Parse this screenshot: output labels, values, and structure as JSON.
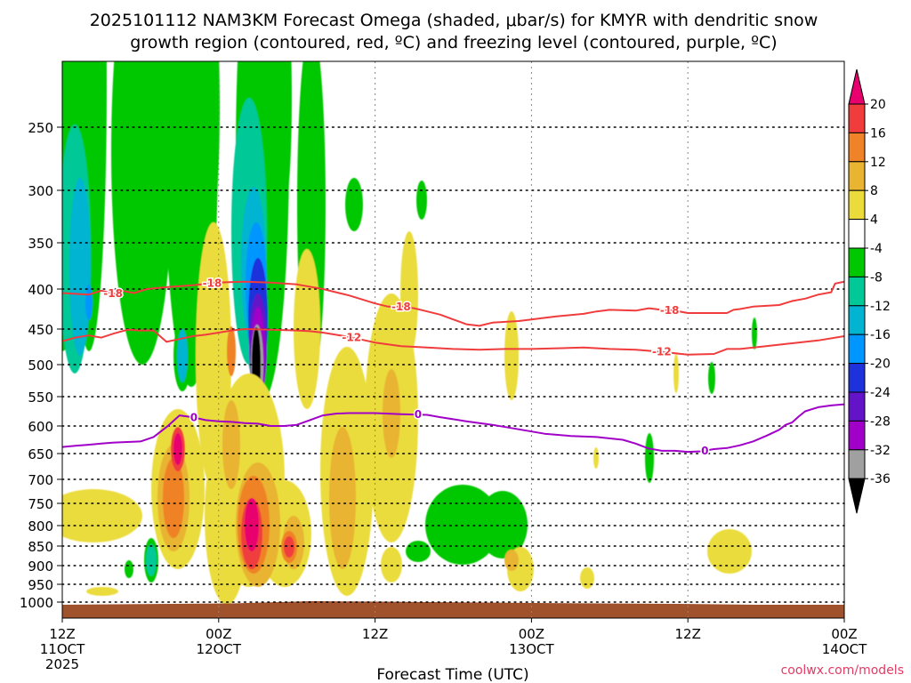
{
  "chart_data": {
    "type": "heatmap",
    "title_line1": "2025101112 NAM3KM Forecast Omega (shaded, μbar/s) for KMYR with dendritic snow",
    "title_line2": "growth region (contoured, red, ºC) and freezing level (contoured, purple, ºC)",
    "xlabel": "Forecast Time (UTC)",
    "credit": "coolwx.com/models",
    "x_ticks": [
      {
        "hour": 0,
        "line1": "12Z",
        "line2": "11OCT",
        "line3": "2025"
      },
      {
        "hour": 12,
        "line1": "00Z",
        "line2": "12OCT",
        "line3": ""
      },
      {
        "hour": 24,
        "line1": "12Z",
        "line2": "",
        "line3": ""
      },
      {
        "hour": 36,
        "line1": "00Z",
        "line2": "13OCT",
        "line3": ""
      },
      {
        "hour": 48,
        "line1": "12Z",
        "line2": "",
        "line3": ""
      },
      {
        "hour": 60,
        "line1": "00Z",
        "line2": "14OCT",
        "line3": ""
      }
    ],
    "x_range_hours": [
      0,
      60
    ],
    "y_ticks": [
      250,
      300,
      350,
      400,
      450,
      500,
      550,
      600,
      650,
      700,
      750,
      800,
      850,
      900,
      950,
      1000
    ],
    "y_range_hpa": [
      200,
      1025
    ],
    "colorbar": {
      "labels": [
        "20",
        "16",
        "12",
        "8",
        "4",
        "-4",
        "-8",
        "-12",
        "-16",
        "-20",
        "-24",
        "-28",
        "-32",
        "-36"
      ],
      "colors": [
        "#e8006e",
        "#f03c3c",
        "#f08228",
        "#e8b432",
        "#ebdc3c",
        "#ffffff",
        "#00c800",
        "#00c896",
        "#00b4d2",
        "#0096ff",
        "#1e32dc",
        "#6414c8",
        "#a000c8",
        "#a0a0a0",
        "#000000"
      ]
    },
    "contours": [
      {
        "label": "-18",
        "color": "#f03c3c",
        "label_hours": [
          3.9,
          11.5,
          26.0,
          46.6
        ],
        "points": [
          [
            0,
            405
          ],
          [
            1,
            406
          ],
          [
            2,
            407
          ],
          [
            3,
            402
          ],
          [
            4,
            406
          ],
          [
            4.5,
            402
          ],
          [
            5.5,
            405
          ],
          [
            6.5,
            400
          ],
          [
            8,
            398
          ],
          [
            10,
            396
          ],
          [
            12,
            393
          ],
          [
            14,
            392
          ],
          [
            16,
            393
          ],
          [
            18,
            395
          ],
          [
            20,
            400
          ],
          [
            22,
            408
          ],
          [
            24,
            418
          ],
          [
            25,
            422
          ],
          [
            26,
            422
          ],
          [
            27,
            424
          ],
          [
            28,
            428
          ],
          [
            29,
            432
          ],
          [
            30,
            438
          ],
          [
            31,
            444
          ],
          [
            32,
            446
          ],
          [
            33,
            442
          ],
          [
            34,
            441
          ],
          [
            35,
            440
          ],
          [
            36,
            438
          ],
          [
            37,
            436
          ],
          [
            38,
            434
          ],
          [
            40,
            431
          ],
          [
            41,
            428
          ],
          [
            42,
            426
          ],
          [
            44,
            427
          ],
          [
            45,
            424
          ],
          [
            46,
            426
          ],
          [
            47,
            427
          ],
          [
            48,
            430
          ],
          [
            49,
            430
          ],
          [
            50,
            430
          ],
          [
            51,
            430
          ],
          [
            51.5,
            426
          ],
          [
            52,
            425
          ],
          [
            53,
            422
          ],
          [
            54,
            421
          ],
          [
            55,
            420
          ],
          [
            56,
            415
          ],
          [
            57,
            412
          ],
          [
            58,
            407
          ],
          [
            59,
            404
          ],
          [
            59.3,
            394
          ],
          [
            60,
            392
          ]
        ]
      },
      {
        "label": "-12",
        "color": "#f03c3c",
        "label_hours": [
          22.2,
          46.0
        ],
        "points": [
          [
            0,
            467
          ],
          [
            1,
            462
          ],
          [
            2,
            459
          ],
          [
            3,
            462
          ],
          [
            4,
            456
          ],
          [
            5,
            451
          ],
          [
            6,
            452
          ],
          [
            7,
            452
          ],
          [
            8,
            468
          ],
          [
            9,
            464
          ],
          [
            10,
            460
          ],
          [
            11,
            458
          ],
          [
            12,
            455
          ],
          [
            13,
            452
          ],
          [
            14,
            450
          ],
          [
            16,
            451
          ],
          [
            18,
            452
          ],
          [
            19,
            453
          ],
          [
            20,
            455
          ],
          [
            22,
            461
          ],
          [
            24,
            469
          ],
          [
            26,
            474
          ],
          [
            28,
            476
          ],
          [
            30,
            478
          ],
          [
            32,
            479
          ],
          [
            34,
            478
          ],
          [
            36,
            478
          ],
          [
            38,
            477
          ],
          [
            40,
            476
          ],
          [
            42,
            478
          ],
          [
            44,
            479
          ],
          [
            46,
            482
          ],
          [
            48,
            486
          ],
          [
            50,
            485
          ],
          [
            51,
            478
          ],
          [
            52,
            478
          ],
          [
            54,
            474
          ],
          [
            56,
            470
          ],
          [
            58,
            466
          ],
          [
            60,
            460
          ]
        ]
      },
      {
        "label": "0",
        "color": "#a000c8",
        "label_hours": [
          10.1,
          27.3,
          49.3
        ],
        "points": [
          [
            0,
            638
          ],
          [
            1,
            636
          ],
          [
            2,
            634
          ],
          [
            3,
            632
          ],
          [
            4,
            630
          ],
          [
            5,
            629
          ],
          [
            6,
            628
          ],
          [
            7,
            620
          ],
          [
            8,
            602
          ],
          [
            9,
            582
          ],
          [
            10,
            585
          ],
          [
            11,
            590
          ],
          [
            12,
            592
          ],
          [
            13,
            593
          ],
          [
            14,
            595
          ],
          [
            15,
            596
          ],
          [
            16,
            600
          ],
          [
            17,
            600
          ],
          [
            18,
            598
          ],
          [
            19,
            590
          ],
          [
            20,
            582
          ],
          [
            21,
            579
          ],
          [
            22,
            578
          ],
          [
            24,
            578
          ],
          [
            26,
            580
          ],
          [
            28,
            581
          ],
          [
            29,
            585
          ],
          [
            31,
            592
          ],
          [
            33,
            598
          ],
          [
            35,
            606
          ],
          [
            37,
            614
          ],
          [
            39,
            618
          ],
          [
            41,
            620
          ],
          [
            43,
            625
          ],
          [
            44,
            632
          ],
          [
            45,
            641
          ],
          [
            46,
            645
          ],
          [
            47,
            645
          ],
          [
            48,
            647
          ],
          [
            49,
            646
          ],
          [
            50,
            642
          ],
          [
            51,
            640
          ],
          [
            52,
            635
          ],
          [
            53,
            628
          ],
          [
            54,
            618
          ],
          [
            55,
            607
          ],
          [
            55.5,
            598
          ],
          [
            56,
            594
          ],
          [
            56.5,
            584
          ],
          [
            57,
            575
          ],
          [
            58,
            568
          ],
          [
            59,
            565
          ],
          [
            60,
            563
          ]
        ]
      }
    ]
  }
}
